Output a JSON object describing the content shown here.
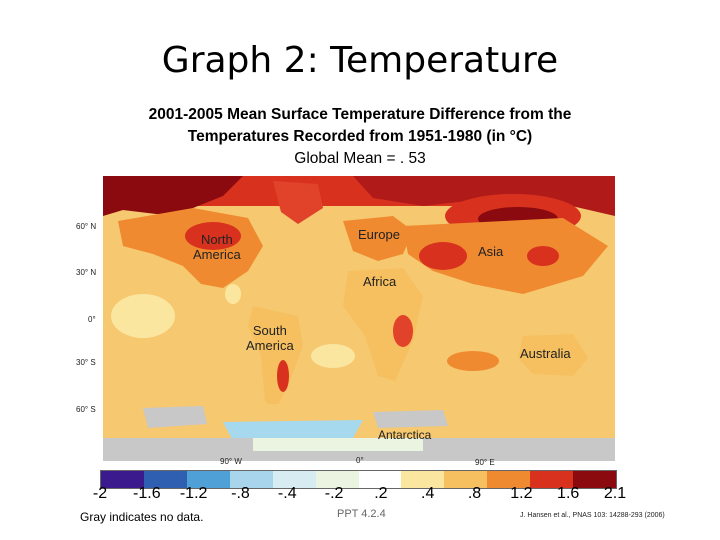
{
  "slide": {
    "title": "Graph 2: Temperature",
    "subtitle_line1": "2001-2005 Mean Surface Temperature Difference from the",
    "subtitle_line2": "Temperatures Recorded from 1951-1980  (in °C)",
    "subtitle_line3": "Global Mean = . 53"
  },
  "map": {
    "lat_labels": [
      "60° N",
      "30° N",
      "0°",
      "30° S",
      "60° S"
    ],
    "lon_labels": [
      "90° W",
      "0°",
      "90° E"
    ],
    "regions": {
      "north_america": "North\nAmerica",
      "europe": "Europe",
      "asia": "Asia",
      "africa": "Africa",
      "south_america": "South\nAmerica",
      "australia": "Australia",
      "antarctica": "Antarctica"
    },
    "colors": {
      "no_data": "#c8c8c8",
      "warm_high": "#8b0a10",
      "warm_mid": "#e0422a",
      "warm_low": "#f59a32",
      "neutral": "#fbe6a0",
      "cool": "#a6d8ee"
    }
  },
  "legend": {
    "ticks": [
      "-2",
      "-1.6",
      "-1.2",
      "-.8",
      "-.4",
      "-.2",
      ".2",
      ".4",
      ".8",
      "1.2",
      "1.6",
      "2.1"
    ],
    "colors": [
      "#3a1a8c",
      "#2f5fb0",
      "#4fa0d6",
      "#a8d4ec",
      "#d6ecf2",
      "#eaf4e0",
      "#ffffff",
      "#fbe6a0",
      "#f6c060",
      "#ef8a30",
      "#d8321e",
      "#8b0a10"
    ]
  },
  "notes": {
    "gray_note": "Gray indicates no data.",
    "footer_code": "PPT 4.2.4",
    "citation": "J. Hansen et al., PNAS 103: 14288-293 (2006)"
  }
}
